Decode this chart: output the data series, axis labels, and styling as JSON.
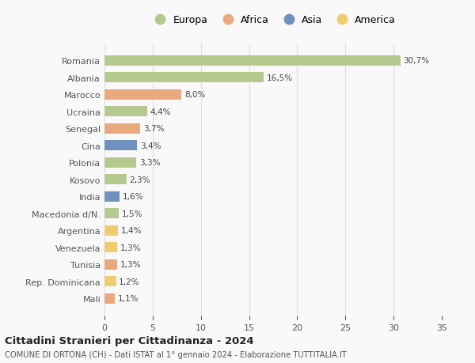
{
  "categories": [
    "Romania",
    "Albania",
    "Marocco",
    "Ucraina",
    "Senegal",
    "Cina",
    "Polonia",
    "Kosovo",
    "India",
    "Macedonia d/N.",
    "Argentina",
    "Venezuela",
    "Tunisia",
    "Rep. Dominicana",
    "Mali"
  ],
  "values": [
    30.7,
    16.5,
    8.0,
    4.4,
    3.7,
    3.4,
    3.3,
    2.3,
    1.6,
    1.5,
    1.4,
    1.3,
    1.3,
    1.2,
    1.1
  ],
  "labels": [
    "30,7%",
    "16,5%",
    "8,0%",
    "4,4%",
    "3,7%",
    "3,4%",
    "3,3%",
    "2,3%",
    "1,6%",
    "1,5%",
    "1,4%",
    "1,3%",
    "1,3%",
    "1,2%",
    "1,1%"
  ],
  "continents": [
    "Europa",
    "Europa",
    "Africa",
    "Europa",
    "Africa",
    "Asia",
    "Europa",
    "Europa",
    "Asia",
    "Europa",
    "America",
    "America",
    "Africa",
    "America",
    "Africa"
  ],
  "colors": {
    "Europa": "#b5c98e",
    "Africa": "#e8a97e",
    "Asia": "#7090c0",
    "America": "#f0cc70"
  },
  "legend_order": [
    "Europa",
    "Africa",
    "Asia",
    "America"
  ],
  "title": "Cittadini Stranieri per Cittadinanza - 2024",
  "subtitle": "COMUNE DI ORTONA (CH) - Dati ISTAT al 1° gennaio 2024 - Elaborazione TUTTITALIA.IT",
  "xlim": [
    0,
    35
  ],
  "xticks": [
    0,
    5,
    10,
    15,
    20,
    25,
    30,
    35
  ],
  "background_color": "#f9f9f9",
  "grid_color": "#dddddd"
}
